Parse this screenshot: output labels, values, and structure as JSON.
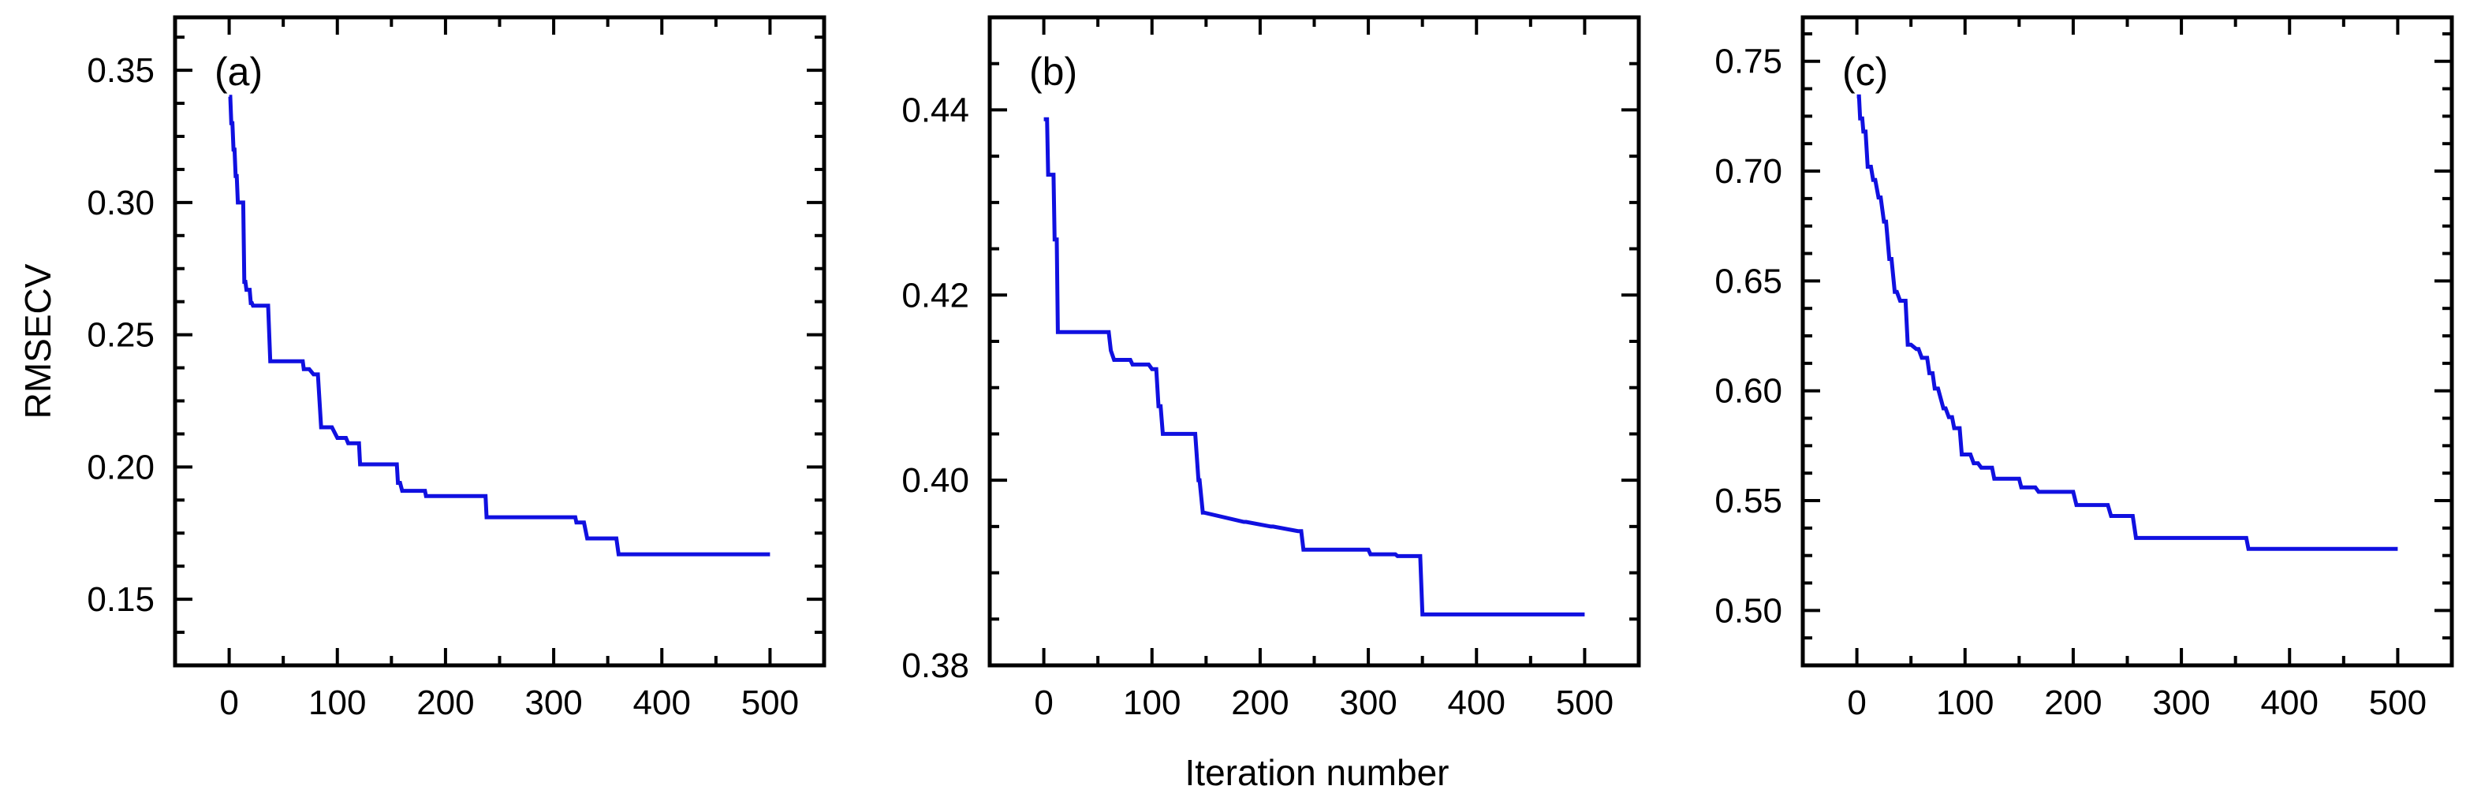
{
  "figure": {
    "shared_xlabel": "Iteration number",
    "line_color": "#1010e0"
  },
  "chart_data": [
    {
      "type": "line",
      "panel_label": "(a)",
      "xlabel": "Iteration number",
      "ylabel": "RMSECV",
      "xlim": [
        -50,
        550
      ],
      "ylim": [
        0.125,
        0.37
      ],
      "xticks": [
        0,
        100,
        200,
        300,
        400,
        500
      ],
      "xtick_labels": [
        "0",
        "100",
        "200",
        "300",
        "400",
        "500"
      ],
      "yticks": [
        0.15,
        0.2,
        0.25,
        0.3,
        0.35
      ],
      "ytick_labels": [
        "0.15",
        "0.20",
        "0.25",
        "0.30",
        "0.35"
      ],
      "series": [
        {
          "name": "RMSECV",
          "x": [
            0,
            1,
            2,
            3,
            4,
            5,
            6,
            7,
            8,
            9,
            10,
            11,
            12,
            13,
            14,
            15,
            16,
            17,
            18,
            19,
            20,
            21,
            22,
            24,
            25,
            26,
            35,
            36,
            38,
            40,
            68,
            69,
            74,
            78,
            82,
            85,
            95,
            100,
            108,
            110,
            113,
            115,
            120,
            121,
            155,
            156,
            158,
            160,
            181,
            182,
            237,
            238,
            320,
            321,
            328,
            331,
            340,
            358,
            360,
            362,
            500
          ],
          "y": [
            0.34,
            0.34,
            0.33,
            0.33,
            0.32,
            0.32,
            0.31,
            0.31,
            0.3,
            0.3,
            0.3,
            0.3,
            0.3,
            0.3,
            0.27,
            0.27,
            0.267,
            0.267,
            0.267,
            0.267,
            0.262,
            0.262,
            0.261,
            0.261,
            0.261,
            0.261,
            0.261,
            0.261,
            0.24,
            0.24,
            0.24,
            0.237,
            0.237,
            0.235,
            0.235,
            0.215,
            0.215,
            0.211,
            0.211,
            0.209,
            0.209,
            0.209,
            0.209,
            0.201,
            0.201,
            0.194,
            0.194,
            0.191,
            0.191,
            0.189,
            0.189,
            0.181,
            0.181,
            0.179,
            0.179,
            0.173,
            0.173,
            0.173,
            0.167,
            0.167,
            0.167
          ]
        }
      ]
    },
    {
      "type": "line",
      "panel_label": "(b)",
      "xlabel": "Iteration number",
      "ylabel": "",
      "xlim": [
        -50,
        550
      ],
      "ylim": [
        0.38,
        0.45
      ],
      "xticks": [
        0,
        100,
        200,
        300,
        400,
        500
      ],
      "xtick_labels": [
        "0",
        "100",
        "200",
        "300",
        "400",
        "500"
      ],
      "yticks": [
        0.38,
        0.4,
        0.42,
        0.44
      ],
      "ytick_labels": [
        "0.38",
        "0.40",
        "0.42",
        "0.44"
      ],
      "series": [
        {
          "name": "RMSECV",
          "x": [
            0,
            3,
            4,
            9,
            10,
            12,
            13,
            60,
            62,
            65,
            80,
            82,
            97,
            100,
            104,
            106,
            108,
            110,
            140,
            143,
            144,
            147,
            148,
            185,
            187,
            210,
            212,
            235,
            238,
            240,
            300,
            302,
            325,
            327,
            345,
            348,
            350,
            500
          ],
          "y": [
            0.439,
            0.439,
            0.433,
            0.433,
            0.426,
            0.426,
            0.416,
            0.416,
            0.414,
            0.413,
            0.413,
            0.4125,
            0.4125,
            0.412,
            0.412,
            0.408,
            0.408,
            0.405,
            0.405,
            0.4,
            0.4,
            0.3965,
            0.3965,
            0.3955,
            0.3955,
            0.395,
            0.395,
            0.3945,
            0.3945,
            0.3925,
            0.3925,
            0.392,
            0.392,
            0.3918,
            0.3918,
            0.3918,
            0.3855,
            0.3855
          ]
        }
      ]
    },
    {
      "type": "line",
      "panel_label": "(c)",
      "xlabel": "Iteration number",
      "ylabel": "",
      "xlim": [
        -50,
        550
      ],
      "ylim": [
        0.475,
        0.77
      ],
      "xticks": [
        0,
        100,
        200,
        300,
        400,
        500
      ],
      "xtick_labels": [
        "0",
        "100",
        "200",
        "300",
        "400",
        "500"
      ],
      "yticks": [
        0.5,
        0.55,
        0.6,
        0.65,
        0.7,
        0.75
      ],
      "ytick_labels": [
        "0.50",
        "0.55",
        "0.60",
        "0.65",
        "0.70",
        "0.75"
      ],
      "series": [
        {
          "name": "RMSECV",
          "x": [
            0,
            2,
            3,
            5,
            6,
            8,
            10,
            13,
            15,
            17,
            20,
            22,
            25,
            27,
            30,
            32,
            35,
            37,
            40,
            45,
            47,
            50,
            55,
            57,
            60,
            65,
            67,
            70,
            72,
            75,
            80,
            82,
            85,
            88,
            90,
            95,
            97,
            105,
            108,
            112,
            115,
            125,
            127,
            150,
            152,
            165,
            168,
            200,
            203,
            232,
            235,
            255,
            258,
            360,
            362,
            500
          ],
          "y": [
            0.734,
            0.734,
            0.724,
            0.724,
            0.718,
            0.718,
            0.702,
            0.702,
            0.696,
            0.696,
            0.688,
            0.688,
            0.677,
            0.677,
            0.66,
            0.66,
            0.645,
            0.645,
            0.641,
            0.641,
            0.621,
            0.621,
            0.619,
            0.619,
            0.615,
            0.615,
            0.608,
            0.608,
            0.601,
            0.601,
            0.592,
            0.592,
            0.588,
            0.588,
            0.583,
            0.583,
            0.571,
            0.571,
            0.567,
            0.567,
            0.565,
            0.565,
            0.56,
            0.56,
            0.556,
            0.556,
            0.554,
            0.554,
            0.548,
            0.548,
            0.543,
            0.543,
            0.533,
            0.533,
            0.528,
            0.528
          ]
        }
      ]
    }
  ]
}
